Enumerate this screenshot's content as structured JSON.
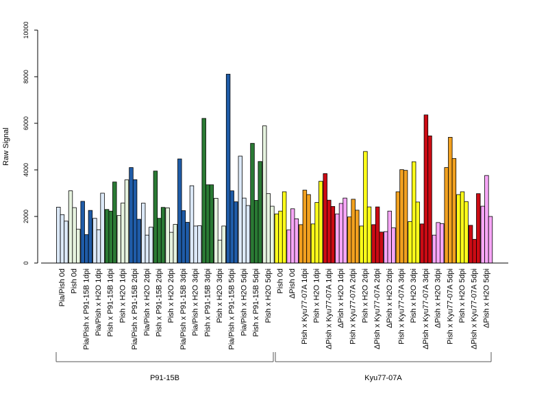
{
  "chart_data": {
    "type": "bar",
    "title": "",
    "xlabel": "",
    "ylabel": "Raw Signal",
    "ylim": [
      0,
      10000
    ],
    "yticks": [
      0,
      2000,
      4000,
      6000,
      8000,
      10000
    ],
    "grid": false,
    "legend": "none",
    "colors": {
      "P91_bar": "#1f5ca8",
      "P91_light": "#dce9f8",
      "P91_green": "#2a7a34",
      "P91_green_light": "#e6f3df",
      "Kyu_yellow": "#ffff1a",
      "Kyu_pink": "#f7a6f7",
      "Kyu_orange": "#f2a11f",
      "Kyu_red": "#cc0b14"
    },
    "groups": [
      {
        "label": "P91-15B",
        "categories": [
          {
            "label": "Pia/Pish 0d",
            "color": "#dce9f8",
            "values": [
              2400,
              2080,
              1800
            ]
          },
          {
            "label": "Pish 0d",
            "color": "#e6f3df",
            "values": [
              3100,
              2380,
              1450
            ]
          },
          {
            "label": "Pia/Pish x P91-15B 1dpi",
            "color": "#1f5ca8",
            "values": [
              2650,
              1220,
              2260
            ]
          },
          {
            "label": "Pia/Pish x H2O 1dpi",
            "color": "#dce9f8",
            "values": [
              1920,
              1430,
              3000
            ]
          },
          {
            "label": "Pish x P91-15B 1dpi",
            "color": "#2a7a34",
            "values": [
              2300,
              2230,
              3480
            ]
          },
          {
            "label": "Pish x H2O 1dpi",
            "color": "#e6f3df",
            "values": [
              2040,
              2580,
              3570
            ]
          },
          {
            "label": "Pia/Pish x P91-15B 2dpi",
            "color": "#1f5ca8",
            "values": [
              4100,
              3580,
              1880
            ]
          },
          {
            "label": "Pia/Pish x H2O 2dpi",
            "color": "#dce9f8",
            "values": [
              2570,
              1200,
              1540
            ]
          },
          {
            "label": "Pish x P91-15B 2dpi",
            "color": "#2a7a34",
            "values": [
              3950,
              1920,
              2390
            ]
          },
          {
            "label": "Pish x H2O 2dpi",
            "color": "#e6f3df",
            "values": [
              2370,
              1320,
              1660
            ]
          },
          {
            "label": "Pia/Pish x P91-15B 3dpi",
            "color": "#1f5ca8",
            "values": [
              4470,
              2250,
              1750
            ]
          },
          {
            "label": "Pia/Pish x H2O 3dpi",
            "color": "#dce9f8",
            "values": [
              3320,
              1590,
              1600
            ]
          },
          {
            "label": "Pish x P91-15B 3dpi",
            "color": "#2a7a34",
            "values": [
              6210,
              3360,
              3360
            ]
          },
          {
            "label": "Pish x H2O 3dpi",
            "color": "#e6f3df",
            "values": [
              2780,
              980,
              1590
            ]
          },
          {
            "label": "Pia/Pish x P91-15B 5dpi",
            "color": "#1f5ca8",
            "values": [
              8110,
              3100,
              2630
            ]
          },
          {
            "label": "Pia/Pish x H2O 5dpi",
            "color": "#dce9f8",
            "values": [
              4590,
              2790,
              2470
            ]
          },
          {
            "label": "Pish x P91-15B 5dpi",
            "color": "#2a7a34",
            "values": [
              5140,
              2690,
              4360
            ]
          },
          {
            "label": "Pish x H2O 5dpi",
            "color": "#e6f3df",
            "values": [
              5890,
              2980,
              2440
            ]
          }
        ]
      },
      {
        "label": "Kyu77-07A",
        "categories": [
          {
            "label": "Pish 0d",
            "color": "#ffff1a",
            "values": [
              2110,
              2230,
              3060
            ]
          },
          {
            "label": "ΔPish 0d",
            "color": "#f7a6f7",
            "values": [
              1420,
              2330,
              1900
            ]
          },
          {
            "label": "Pish x Kyu77-07A 1dpi",
            "color": "#f2a11f",
            "values": [
              1650,
              3130,
              2940
            ]
          },
          {
            "label": "Pish x H2O 1dpi",
            "color": "#ffff1a",
            "values": [
              1680,
              2600,
              3510
            ]
          },
          {
            "label": "ΔPish x Kyu77-07A 1dpi",
            "color": "#cc0b14",
            "values": [
              3840,
              2700,
              2430
            ]
          },
          {
            "label": "ΔPish x H2O 1dpi",
            "color": "#f7a6f7",
            "values": [
              2110,
              2560,
              2790
            ]
          },
          {
            "label": "Pish x Kyu77-07A 2dpi",
            "color": "#f2a11f",
            "values": [
              1980,
              2740,
              2270
            ]
          },
          {
            "label": "Pish x H2O 2dpi",
            "color": "#ffff1a",
            "values": [
              1590,
              4790,
              2410
            ]
          },
          {
            "label": "ΔPish x Kyu77-07A 2dpi",
            "color": "#cc0b14",
            "values": [
              1650,
              2410,
              1330
            ]
          },
          {
            "label": "ΔPish x H2O 2dpi",
            "color": "#f7a6f7",
            "values": [
              1350,
              2230,
              1510
            ]
          },
          {
            "label": "Pish x Kyu77-07A 3dpi",
            "color": "#f2a11f",
            "values": [
              3060,
              4010,
              3980
            ]
          },
          {
            "label": "Pish x H2O 3dpi",
            "color": "#ffff1a",
            "values": [
              1780,
              4350,
              2620
            ]
          },
          {
            "label": "ΔPish x Kyu77-07A 3dpi",
            "color": "#cc0b14",
            "values": [
              1680,
              6360,
              5460
            ]
          },
          {
            "label": "ΔPish x H2O 3dpi",
            "color": "#f7a6f7",
            "values": [
              1200,
              1740,
              1690
            ]
          },
          {
            "label": "Pish x Kyu77-07A 5dpi",
            "color": "#f2a11f",
            "values": [
              4100,
              5400,
              4490
            ]
          },
          {
            "label": "Pish x H2O 5dpi",
            "color": "#ffff1a",
            "values": [
              2940,
              3060,
              2640
            ]
          },
          {
            "label": "ΔPish x Kyu77-07A 5dpi",
            "color": "#cc0b14",
            "values": [
              1620,
              1020,
              2980
            ]
          },
          {
            "label": "ΔPish x H2O 5dpi",
            "color": "#f7a6f7",
            "values": [
              2440,
              3760,
              2000
            ]
          }
        ]
      }
    ]
  }
}
